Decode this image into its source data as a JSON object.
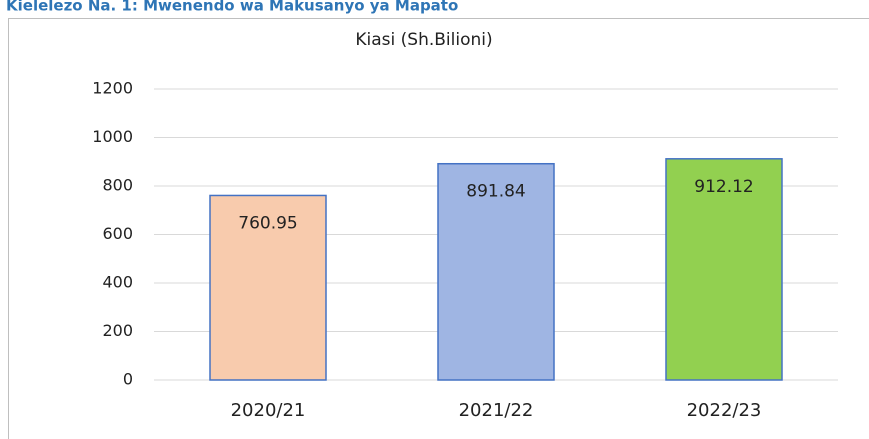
{
  "chart_data": {
    "type": "bar",
    "title": "Kielelezo Na. 1: Mwenendo wa Makusanyo ya Mapato",
    "subtitle": "Kiasi (Sh.Bilioni)",
    "categories": [
      "2020/21",
      "2021/22",
      "2022/23"
    ],
    "values": [
      760.95,
      891.84,
      912.12
    ],
    "colors": [
      "#f8cbad",
      "#9fb5e3",
      "#92d050"
    ],
    "edge_color": "#4472c4",
    "ylim": [
      0,
      1200
    ],
    "yticks": [
      0,
      200,
      400,
      600,
      800,
      1000,
      1200
    ],
    "grid": true
  }
}
